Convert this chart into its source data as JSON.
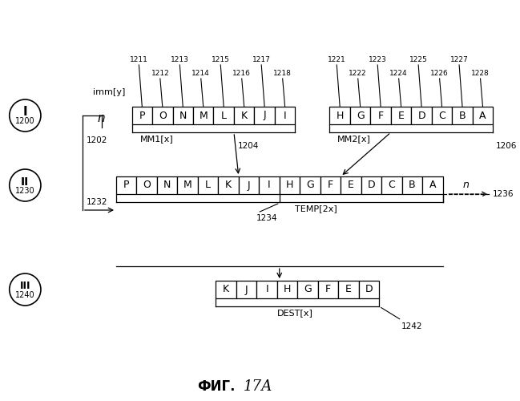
{
  "background_color": "#ffffff",
  "row1_labels": [
    "P",
    "O",
    "N",
    "M",
    "L",
    "K",
    "J",
    "I"
  ],
  "row2_labels": [
    "H",
    "G",
    "F",
    "E",
    "D",
    "C",
    "B",
    "A"
  ],
  "row3_labels": [
    "P",
    "O",
    "N",
    "M",
    "L",
    "K",
    "J",
    "I",
    "H",
    "G",
    "F",
    "E",
    "D",
    "C",
    "B",
    "A"
  ],
  "row4_labels": [
    "K",
    "J",
    "I",
    "H",
    "G",
    "F",
    "E",
    "D"
  ],
  "mm1_top_labels_odd": [
    "1211",
    "1213",
    "1215",
    "1217"
  ],
  "mm1_top_labels_even": [
    "1212",
    "1214",
    "1216",
    "1218"
  ],
  "mm2_top_labels_odd": [
    "1221",
    "1223",
    "1225",
    "1227"
  ],
  "mm2_top_labels_even": [
    "1222",
    "1224",
    "1226",
    "1228"
  ],
  "label_1202": "1202",
  "label_1204": "1204",
  "label_1206": "1206",
  "label_1232": "1232",
  "label_1234": "1234",
  "label_1236": "1236",
  "label_1242": "1242",
  "mm1_label": "MM1[x]",
  "mm2_label": "MM2[x]",
  "temp_label": "TEMP[2x]",
  "dest_label": "DEST[x]",
  "immy_label": "imm[y]",
  "n_label": "n",
  "circle_I": "I",
  "circle_II": "II",
  "circle_III": "III",
  "num_1200": "1200",
  "num_1230": "1230",
  "num_1240": "1240",
  "fig_label": "ФИГ.",
  "fig_num": "17А"
}
